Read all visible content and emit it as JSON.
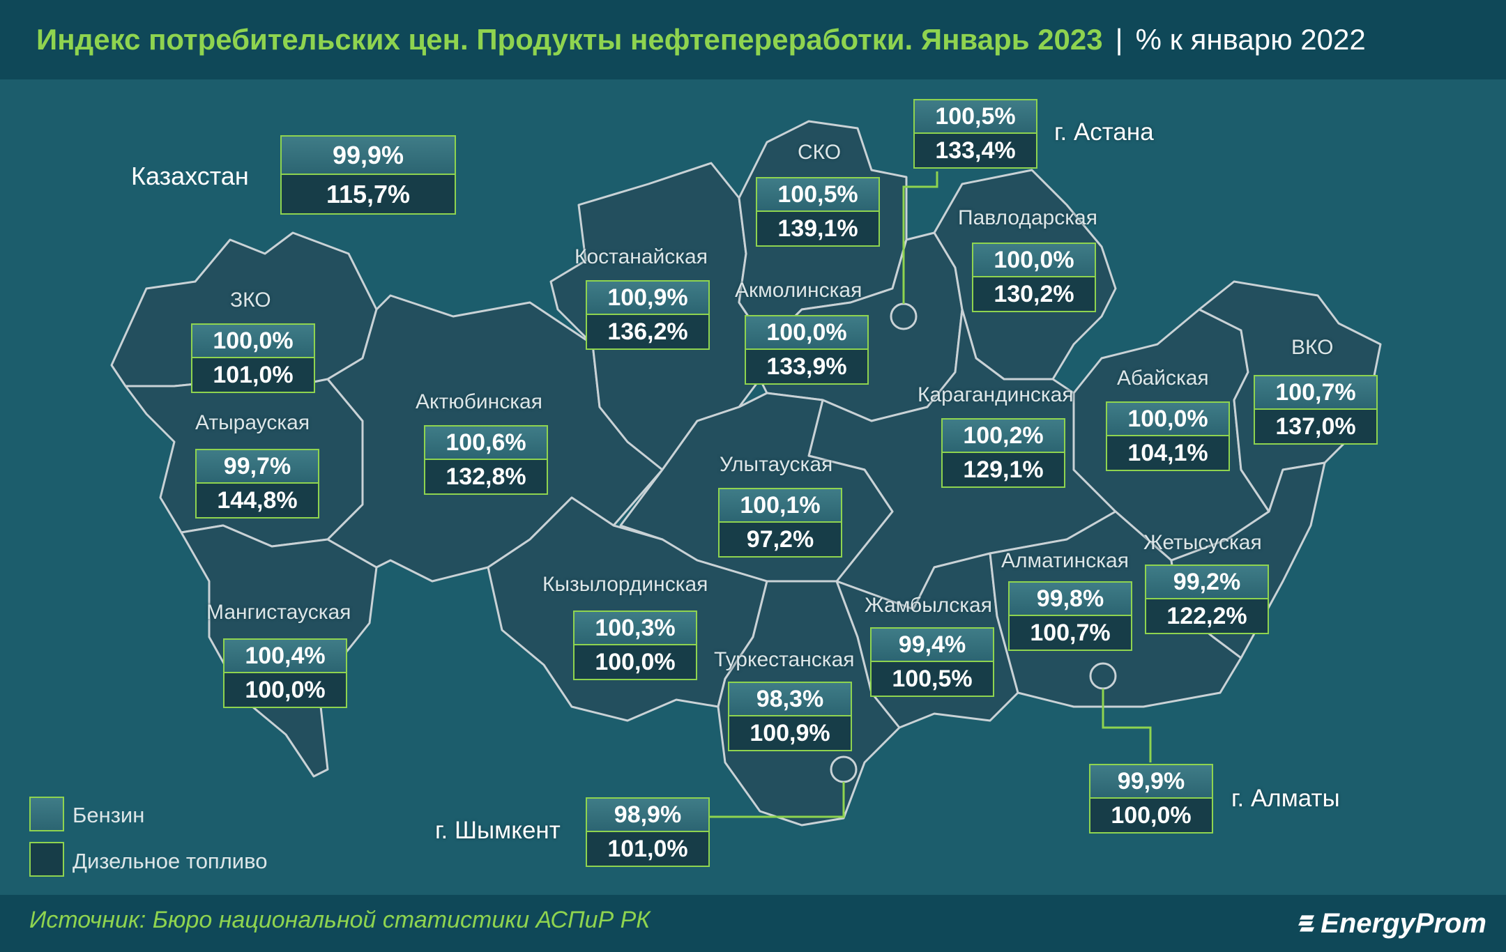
{
  "header": {
    "title": "Индекс потребительских цен. Продукты нефтепереработки. Январь 2023",
    "separator": "|",
    "unit": "% к январю 2022"
  },
  "country": {
    "name": "Казахстан",
    "petrol": "99,9%",
    "diesel": "115,7%"
  },
  "regions": [
    {
      "id": "zko",
      "name": "ЗКО",
      "petrol": "100,0%",
      "diesel": "101,0%"
    },
    {
      "id": "atyrau",
      "name": "Атырауская",
      "petrol": "99,7%",
      "diesel": "144,8%"
    },
    {
      "id": "mangystau",
      "name": "Мангистауская",
      "petrol": "100,4%",
      "diesel": "100,0%"
    },
    {
      "id": "aktobe",
      "name": "Актюбинская",
      "petrol": "100,6%",
      "diesel": "132,8%"
    },
    {
      "id": "kostanay",
      "name": "Костанайская",
      "petrol": "100,9%",
      "diesel": "136,2%"
    },
    {
      "id": "sko",
      "name": "СКО",
      "petrol": "100,5%",
      "diesel": "139,1%"
    },
    {
      "id": "akmola",
      "name": "Акмолинская",
      "petrol": "100,0%",
      "diesel": "133,9%"
    },
    {
      "id": "astana",
      "name": "г. Астана",
      "petrol": "100,5%",
      "diesel": "133,4%"
    },
    {
      "id": "pavlodar",
      "name": "Павлодарская",
      "petrol": "100,0%",
      "diesel": "130,2%"
    },
    {
      "id": "karaganda",
      "name": "Карагандинская",
      "petrol": "100,2%",
      "diesel": "129,1%"
    },
    {
      "id": "abai",
      "name": "Абайская",
      "petrol": "100,0%",
      "diesel": "104,1%"
    },
    {
      "id": "vko",
      "name": "ВКО",
      "petrol": "100,7%",
      "diesel": "137,0%"
    },
    {
      "id": "ulytau",
      "name": "Улытауская",
      "petrol": "100,1%",
      "diesel": "97,2%"
    },
    {
      "id": "kyzylorda",
      "name": "Кызылординская",
      "petrol": "100,3%",
      "diesel": "100,0%"
    },
    {
      "id": "turkestan",
      "name": "Туркестанская",
      "petrol": "98,3%",
      "diesel": "100,9%"
    },
    {
      "id": "zhambyl",
      "name": "Жамбылская",
      "petrol": "99,4%",
      "diesel": "100,5%"
    },
    {
      "id": "almaty_obl",
      "name": "Алматинская",
      "petrol": "99,8%",
      "diesel": "100,7%"
    },
    {
      "id": "zhetysu",
      "name": "Жетысуская",
      "petrol": "99,2%",
      "diesel": "122,2%"
    },
    {
      "id": "shymkent",
      "name": "г. Шымкент",
      "petrol": "98,9%",
      "diesel": "101,0%"
    },
    {
      "id": "almaty_city",
      "name": "г. Алматы",
      "petrol": "99,9%",
      "diesel": "100,0%"
    }
  ],
  "legend": {
    "petrol": "Бензин",
    "diesel": "Дизельное топливо"
  },
  "colors": {
    "background": "#1c5d6c",
    "header": "#0f4858",
    "map_fill": "#234f5e",
    "map_border": "#c9d2d6",
    "accent": "#8fd44f",
    "petrol_cell": "#35707d",
    "diesel_cell": "#173d48"
  },
  "footer": {
    "source": "Источник: Бюро национальной статистики АСПиР РК",
    "logo": "EnergyProm"
  }
}
